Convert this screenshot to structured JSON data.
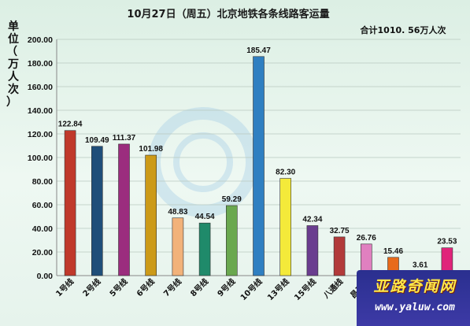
{
  "chart_data": {
    "type": "bar",
    "title": "10月27日（周五）北京地铁各条线路客运量",
    "total_note": "合计1010. 56万人次",
    "ylabel": "单位（万人次）",
    "ylim": [
      0,
      200
    ],
    "yticks": [
      "0.00",
      "20.00",
      "40.00",
      "60.00",
      "80.00",
      "100.00",
      "120.00",
      "140.00",
      "160.00",
      "180.00",
      "200.00"
    ],
    "grid": true,
    "legend": "none",
    "categories": [
      "1号线",
      "2号线",
      "5号线",
      "6号线",
      "7号线",
      "8号线",
      "9号线",
      "10号线",
      "13号线",
      "15号线",
      "八通线",
      "昌平线",
      "",
      "",
      ""
    ],
    "values": [
      122.84,
      109.49,
      111.37,
      101.98,
      48.83,
      44.54,
      59.29,
      185.47,
      82.3,
      42.34,
      32.75,
      26.76,
      15.46,
      3.61,
      23.53
    ],
    "value_labels": [
      "122.84",
      "109.49",
      "111.37",
      "101.98",
      "48.83",
      "44.54",
      "59.29",
      "185.47",
      "82.30",
      "42.34",
      "32.75",
      "26.76",
      "15.46",
      "3.61",
      "23.53"
    ],
    "colors": [
      "#c0392b",
      "#1f4e79",
      "#9b2d7e",
      "#cc9a18",
      "#f2b27a",
      "#1f8a6a",
      "#6aa84f",
      "#2f7fc1",
      "#f4ea3a",
      "#6a3d8f",
      "#b23a3a",
      "#e080c0",
      "#e86a1a",
      "#9aa0a8",
      "#e0247a"
    ]
  },
  "watermark": {
    "title": "亚路奇闻网",
    "url": "www.yaluw.com"
  }
}
